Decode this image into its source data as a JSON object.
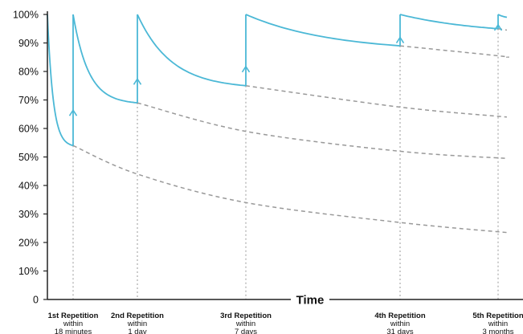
{
  "chart_data": {
    "type": "line",
    "title": "",
    "xlabel": "Time",
    "ylabel": "",
    "ylim": [
      0,
      100
    ],
    "y_ticks": [
      "0",
      "10%",
      "20%",
      "30%",
      "40%",
      "50%",
      "60%",
      "70%",
      "80%",
      "90%",
      "100%"
    ],
    "grid": false,
    "colors": {
      "retention": "#4bb8d6",
      "decay": "#999999",
      "axis": "#222222"
    },
    "categories": [
      {
        "title": "1st Repetition",
        "line2": "within",
        "line3": "18 minutes"
      },
      {
        "title": "2nd Repetition",
        "line2": "within",
        "line3": "1 day"
      },
      {
        "title": "3rd Repetition",
        "line2": "within",
        "line3": "7 days"
      },
      {
        "title": "4th Repetition",
        "line2": "within",
        "line3": "31 days"
      },
      {
        "title": "5th Repetition",
        "line2": "within",
        "line3": "3 months"
      }
    ],
    "series": [
      {
        "kind": "retention",
        "points": [
          [
            0,
            100
          ],
          [
            1,
            54
          ]
        ]
      },
      {
        "kind": "retention",
        "points": [
          [
            1,
            100
          ],
          [
            2,
            69
          ]
        ]
      },
      {
        "kind": "retention",
        "points": [
          [
            2,
            100
          ],
          [
            3,
            75
          ]
        ]
      },
      {
        "kind": "retention",
        "points": [
          [
            3,
            100
          ],
          [
            4,
            89
          ]
        ]
      },
      {
        "kind": "retention",
        "points": [
          [
            4,
            100
          ],
          [
            5,
            95
          ]
        ]
      },
      {
        "kind": "retention",
        "points": [
          [
            5,
            100
          ],
          [
            5.35,
            99
          ]
        ]
      },
      {
        "kind": "forgetting",
        "points": [
          [
            1,
            54
          ],
          [
            2,
            44
          ],
          [
            3,
            34
          ],
          [
            4,
            27
          ],
          [
            5.35,
            23.5
          ]
        ]
      },
      {
        "kind": "forgetting",
        "points": [
          [
            2,
            69
          ],
          [
            3,
            59
          ],
          [
            4,
            52
          ],
          [
            5.35,
            49.5
          ]
        ]
      },
      {
        "kind": "forgetting",
        "points": [
          [
            3,
            75
          ],
          [
            4,
            67.5
          ],
          [
            5.35,
            64
          ]
        ]
      },
      {
        "kind": "forgetting",
        "points": [
          [
            4,
            89
          ],
          [
            5,
            85.5
          ],
          [
            5.35,
            85
          ]
        ]
      },
      {
        "kind": "forgetting",
        "points": [
          [
            5,
            95
          ],
          [
            5.35,
            94.5
          ]
        ]
      }
    ],
    "repetitions": [
      {
        "x": 1,
        "from": 54,
        "to": 100
      },
      {
        "x": 2,
        "from": 69,
        "to": 100
      },
      {
        "x": 3,
        "from": 75,
        "to": 100
      },
      {
        "x": 4,
        "from": 89,
        "to": 100
      },
      {
        "x": 5,
        "from": 95,
        "to": 100
      }
    ]
  }
}
